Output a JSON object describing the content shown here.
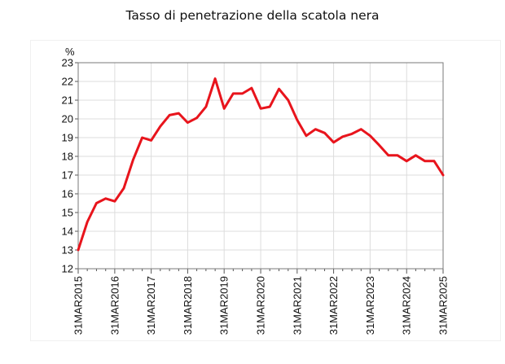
{
  "chart_data": {
    "type": "line",
    "title": "Tasso di penetrazione della scatola nera",
    "ylabel": "%",
    "ylim": [
      12,
      23
    ],
    "yticks": [
      12,
      13,
      14,
      15,
      16,
      17,
      18,
      19,
      20,
      21,
      22,
      23
    ],
    "xtick_labels": [
      "31MAR2015",
      "31MAR2016",
      "31MAR2017",
      "31MAR2018",
      "31MAR2019",
      "31MAR2020",
      "31MAR2021",
      "31MAR2022",
      "31MAR2023",
      "31MAR2024",
      "31MAR2025"
    ],
    "grid": true,
    "series_color": "#e8141c",
    "x": [
      "2015-03-31",
      "2015-06-30",
      "2015-09-30",
      "2015-12-31",
      "2016-03-31",
      "2016-06-30",
      "2016-09-30",
      "2016-12-31",
      "2017-03-31",
      "2017-06-30",
      "2017-09-30",
      "2017-12-31",
      "2018-03-31",
      "2018-06-30",
      "2018-09-30",
      "2018-12-31",
      "2019-03-31",
      "2019-06-30",
      "2019-09-30",
      "2019-12-31",
      "2020-03-31",
      "2020-06-30",
      "2020-09-30",
      "2020-12-31",
      "2021-03-31",
      "2021-06-30",
      "2021-09-30",
      "2021-12-31",
      "2022-03-31",
      "2022-06-30",
      "2022-09-30",
      "2022-12-31",
      "2023-03-31",
      "2023-06-30",
      "2023-09-30",
      "2023-12-31",
      "2024-03-31",
      "2024-06-30",
      "2024-09-30",
      "2024-12-31",
      "2025-03-31"
    ],
    "series": [
      {
        "values": [
          13.0,
          14.5,
          15.5,
          15.75,
          15.6,
          16.3,
          17.8,
          19.0,
          18.85,
          19.6,
          20.2,
          20.3,
          19.8,
          20.05,
          20.65,
          22.15,
          20.55,
          21.35,
          21.35,
          21.65,
          20.55,
          20.65,
          21.6,
          21.0,
          19.95,
          19.1,
          19.45,
          19.25,
          18.75,
          19.05,
          19.2,
          19.45,
          19.1,
          18.6,
          18.05,
          18.05,
          17.75,
          18.05,
          17.75,
          17.75,
          17.0
        ]
      }
    ]
  }
}
